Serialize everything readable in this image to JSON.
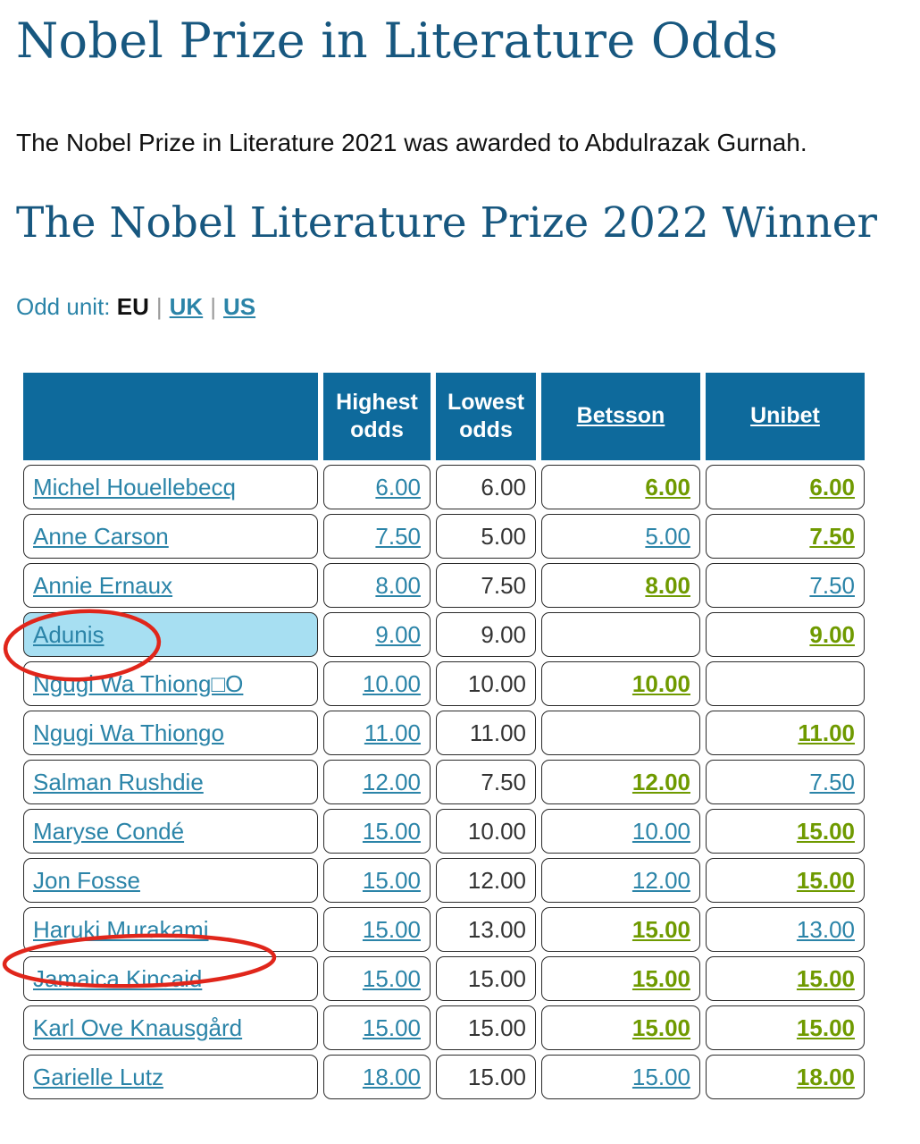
{
  "page": {
    "title": "Nobel Prize in Literature Odds",
    "intro": "The Nobel Prize in Literature 2021 was awarded to Abdulrazak Gurnah.",
    "subtitle": "The Nobel Literature Prize 2022 Winner"
  },
  "odd_unit": {
    "label": "Odd unit:",
    "current": "EU",
    "separator": "|",
    "options": [
      "UK",
      "US"
    ]
  },
  "table": {
    "headers": {
      "name": "",
      "highest": "Highest odds",
      "lowest": "Lowest odds",
      "betsson": "Betsson",
      "unibet": "Unibet"
    },
    "rows": [
      {
        "name": "Michel Houellebecq",
        "highest": "6.00",
        "lowest": "6.00",
        "betsson": "6.00",
        "betsson_best": true,
        "unibet": "6.00",
        "unibet_best": true,
        "highlight": false
      },
      {
        "name": "Anne Carson",
        "highest": "7.50",
        "lowest": "5.00",
        "betsson": "5.00",
        "betsson_best": false,
        "unibet": "7.50",
        "unibet_best": true,
        "highlight": false
      },
      {
        "name": "Annie Ernaux",
        "highest": "8.00",
        "lowest": "7.50",
        "betsson": "8.00",
        "betsson_best": true,
        "unibet": "7.50",
        "unibet_best": false,
        "highlight": false
      },
      {
        "name": "Adunis",
        "highest": "9.00",
        "lowest": "9.00",
        "betsson": "",
        "betsson_best": false,
        "unibet": "9.00",
        "unibet_best": true,
        "highlight": true
      },
      {
        "name": "Ngugi Wa Thiong□O",
        "highest": "10.00",
        "lowest": "10.00",
        "betsson": "10.00",
        "betsson_best": true,
        "unibet": "",
        "unibet_best": false,
        "highlight": false
      },
      {
        "name": "Ngugi Wa Thiongo",
        "highest": "11.00",
        "lowest": "11.00",
        "betsson": "",
        "betsson_best": false,
        "unibet": "11.00",
        "unibet_best": true,
        "highlight": false
      },
      {
        "name": "Salman Rushdie",
        "highest": "12.00",
        "lowest": "7.50",
        "betsson": "12.00",
        "betsson_best": true,
        "unibet": "7.50",
        "unibet_best": false,
        "highlight": false
      },
      {
        "name": "Maryse Condé",
        "highest": "15.00",
        "lowest": "10.00",
        "betsson": "10.00",
        "betsson_best": false,
        "unibet": "15.00",
        "unibet_best": true,
        "highlight": false
      },
      {
        "name": "Jon Fosse",
        "highest": "15.00",
        "lowest": "12.00",
        "betsson": "12.00",
        "betsson_best": false,
        "unibet": "15.00",
        "unibet_best": true,
        "highlight": false
      },
      {
        "name": "Haruki Murakami",
        "highest": "15.00",
        "lowest": "13.00",
        "betsson": "15.00",
        "betsson_best": true,
        "unibet": "13.00",
        "unibet_best": false,
        "highlight": false
      },
      {
        "name": "Jamaica Kincaid",
        "highest": "15.00",
        "lowest": "15.00",
        "betsson": "15.00",
        "betsson_best": true,
        "unibet": "15.00",
        "unibet_best": true,
        "highlight": false
      },
      {
        "name": "Karl Ove Knausgård",
        "highest": "15.00",
        "lowest": "15.00",
        "betsson": "15.00",
        "betsson_best": true,
        "unibet": "15.00",
        "unibet_best": true,
        "highlight": false
      },
      {
        "name": "Garielle Lutz",
        "highest": "18.00",
        "lowest": "15.00",
        "betsson": "15.00",
        "betsson_best": false,
        "unibet": "18.00",
        "unibet_best": true,
        "highlight": false
      }
    ]
  },
  "colors": {
    "heading": "#17577f",
    "header_bg": "#0e6a9c",
    "link": "#2b84a8",
    "best_odds": "#6f9a00",
    "highlight_bg": "#a7dff2",
    "annotation": "#e0261b"
  }
}
